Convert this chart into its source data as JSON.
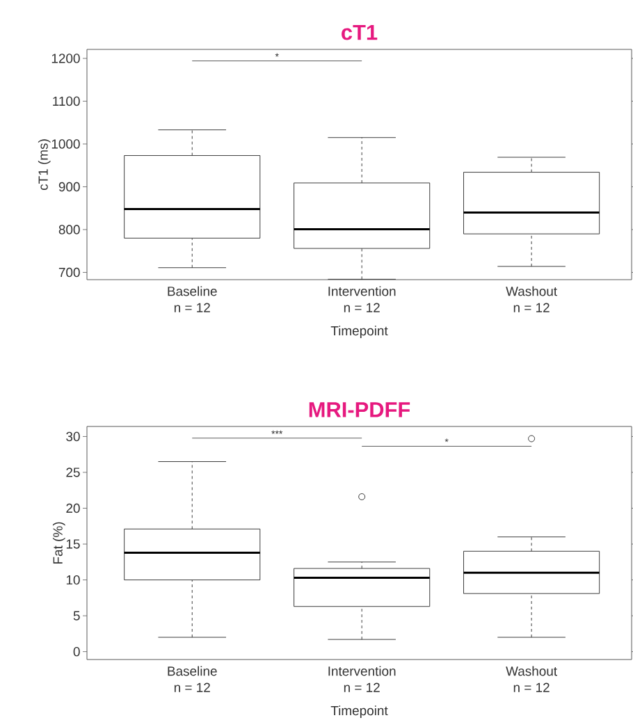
{
  "chart_data": [
    {
      "type": "box",
      "title": "cT1",
      "xlabel": "Timepoint",
      "ylabel": "cT1 (ms)",
      "categories": [
        "Baseline",
        "Intervention",
        "Washout"
      ],
      "boxes": [
        {
          "low": 711,
          "q1": 780,
          "median": 848,
          "q3": 973,
          "high": 1033
        },
        {
          "low": 684,
          "q1": 756,
          "median": 801,
          "q3": 909,
          "high": 1015
        },
        {
          "low": 714,
          "q1": 790,
          "median": 840,
          "q3": 934,
          "high": 969
        }
      ],
      "ylim": [
        683,
        1221
      ],
      "yticks": [
        700,
        800,
        900,
        1000,
        1100,
        1200
      ],
      "annotations": [
        "n = 12",
        "n = 12",
        "n = 12",
        "*"
      ]
    },
    {
      "type": "box",
      "title": "MRI-PDFF",
      "xlabel": "Timepoint",
      "ylabel": "Fat (%)",
      "categories": [
        "Baseline",
        "Intervention",
        "Washout"
      ],
      "boxes": [
        {
          "low": 2.0,
          "q1": 10.0,
          "median": 13.8,
          "q3": 17.1,
          "high": 26.5
        },
        {
          "low": 1.7,
          "q1": 6.3,
          "median": 10.3,
          "q3": 11.6,
          "high": 12.5,
          "outliers": [
            21.6
          ]
        },
        {
          "low": 2.0,
          "q1": 8.1,
          "median": 11.0,
          "q3": 14.0,
          "high": 16.0,
          "outliers": [
            29.7
          ]
        }
      ],
      "ylim": [
        -1.1,
        31.4
      ],
      "yticks": [
        0,
        5,
        10,
        15,
        20,
        25,
        30
      ],
      "annotations": [
        "n = 12",
        "n = 12",
        "n = 12",
        "***",
        "*"
      ]
    }
  ]
}
